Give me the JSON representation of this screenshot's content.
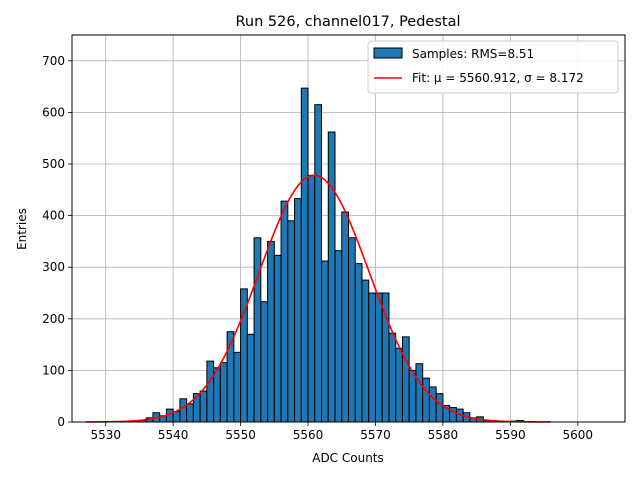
{
  "chart_data": {
    "type": "bar",
    "title": "Run 526, channel017, Pedestal",
    "xlabel": "ADC Counts",
    "ylabel": "Entries",
    "xlim": [
      5525,
      5607
    ],
    "ylim": [
      0,
      750
    ],
    "xticks": [
      5530,
      5540,
      5550,
      5560,
      5570,
      5580,
      5590,
      5600
    ],
    "yticks": [
      0,
      100,
      200,
      300,
      400,
      500,
      600,
      700
    ],
    "grid": true,
    "legend_position": "top-right",
    "bin_width": 1,
    "bar_color": "#1f77b4",
    "fit_color": "#ff0000",
    "series": [
      {
        "name": "Samples: RMS=8.51",
        "kind": "histogram",
        "bins_start": [
          5534,
          5535,
          5536,
          5537,
          5538,
          5539,
          5540,
          5541,
          5542,
          5543,
          5544,
          5545,
          5546,
          5547,
          5548,
          5549,
          5550,
          5551,
          5552,
          5553,
          5554,
          5555,
          5556,
          5557,
          5558,
          5559,
          5560,
          5561,
          5562,
          5563,
          5564,
          5565,
          5566,
          5567,
          5568,
          5569,
          5570,
          5571,
          5572,
          5573,
          5574,
          5575,
          5576,
          5577,
          5578,
          5579,
          5580,
          5581,
          5582,
          5583,
          5584,
          5585,
          5586,
          5587,
          5588,
          5589,
          5590,
          5591,
          5592
        ],
        "values": [
          2,
          3,
          8,
          18,
          12,
          25,
          20,
          45,
          35,
          55,
          60,
          118,
          105,
          115,
          175,
          135,
          258,
          170,
          357,
          233,
          350,
          323,
          428,
          390,
          433,
          647,
          478,
          615,
          312,
          562,
          332,
          407,
          357,
          307,
          275,
          250,
          250,
          250,
          172,
          143,
          165,
          100,
          113,
          85,
          68,
          55,
          32,
          28,
          25,
          18,
          8,
          10,
          3,
          3,
          2,
          1,
          2,
          3,
          1
        ]
      },
      {
        "name": "Fit: μ = 5560.912, σ = 8.172",
        "kind": "gaussian",
        "mu": 5560.912,
        "sigma": 8.172,
        "amplitude": 478,
        "x_range": [
          5527,
          5596
        ]
      }
    ]
  }
}
